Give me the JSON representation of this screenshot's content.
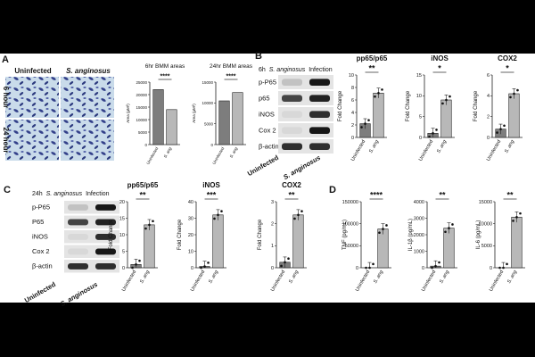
{
  "panel_labels": {
    "A": "A",
    "B": "B",
    "C": "C",
    "D": "D"
  },
  "micro": {
    "col1": "Uninfected",
    "col2": "S. anginosus",
    "row1": "6 hour",
    "row2": "24 hour"
  },
  "blots": {
    "B": {
      "header_prefix": "6h",
      "header_species": "S. anginosus",
      "header_suffix": "Infection",
      "bands": [
        "p-P65",
        "p65",
        "iNOS",
        "Cox 2",
        "β-actin"
      ],
      "lanes": [
        "Uninfected",
        "S. anginosus"
      ]
    },
    "C": {
      "header_prefix": "24h",
      "header_species": "S. anginosus",
      "header_suffix": "Infection",
      "bands": [
        "p-P65",
        "P65",
        "iNOS",
        "Cox 2",
        "β-actin"
      ],
      "lanes": [
        "Uninfected",
        "S. anginosus"
      ]
    }
  },
  "chart_data": [
    {
      "id": "a1",
      "type": "bar",
      "title": "6hr BMM areas",
      "ylabel": "Area (µM²)",
      "categories": [
        "Uninfected",
        "S. ang"
      ],
      "values": [
        22000,
        14000
      ],
      "ylim": [
        0,
        25000
      ],
      "yticks": [
        0,
        5000,
        10000,
        15000,
        20000,
        25000
      ],
      "significance": "****"
    },
    {
      "id": "a2",
      "type": "bar",
      "title": "24hr BMM areas",
      "ylabel": "Area (µM²)",
      "categories": [
        "Uninfected",
        "S. ang"
      ],
      "values": [
        10500,
        12500
      ],
      "ylim": [
        0,
        15000
      ],
      "yticks": [
        0,
        5000,
        10000,
        15000
      ],
      "significance": "****"
    },
    {
      "id": "b1",
      "type": "bar",
      "title": "pp65/p65",
      "ylabel": "Fold Change",
      "categories": [
        "Uninfected",
        "S. ang"
      ],
      "values": [
        2.2,
        7.1
      ],
      "ylim": [
        0,
        10
      ],
      "yticks": [
        0,
        2,
        4,
        6,
        8,
        10
      ],
      "significance": "**"
    },
    {
      "id": "b2",
      "type": "bar",
      "title": "iNOS",
      "ylabel": "Fold Change",
      "categories": [
        "Uninfected",
        "S. ang"
      ],
      "values": [
        1.0,
        9.0
      ],
      "ylim": [
        0,
        15
      ],
      "yticks": [
        0,
        5,
        10,
        15
      ],
      "significance": "*"
    },
    {
      "id": "b3",
      "type": "bar",
      "title": "COX2",
      "ylabel": "Fold Change",
      "categories": [
        "Uninfected",
        "S. ang"
      ],
      "values": [
        0.8,
        4.2
      ],
      "ylim": [
        0,
        6
      ],
      "yticks": [
        0,
        2,
        4,
        6
      ],
      "significance": "*"
    },
    {
      "id": "c1",
      "type": "bar",
      "title": "pp65/p65",
      "ylabel": "Fold Change",
      "categories": [
        "Uninfected",
        "S. ang"
      ],
      "values": [
        1.0,
        13.0
      ],
      "ylim": [
        0,
        20
      ],
      "yticks": [
        0,
        5,
        10,
        15,
        20
      ],
      "significance": "**"
    },
    {
      "id": "c2",
      "type": "bar",
      "title": "iNOS",
      "ylabel": "Fold Change",
      "categories": [
        "Uninfected",
        "S. ang"
      ],
      "values": [
        0.8,
        32.0
      ],
      "ylim": [
        0,
        40
      ],
      "yticks": [
        0,
        10,
        20,
        30,
        40
      ],
      "significance": "***"
    },
    {
      "id": "c3",
      "type": "bar",
      "title": "COX2",
      "ylabel": "Fold Change",
      "categories": [
        "Uninfected",
        "S. ang"
      ],
      "values": [
        0.25,
        2.4
      ],
      "ylim": [
        0,
        3
      ],
      "yticks": [
        0,
        1,
        2,
        3
      ],
      "significance": "**"
    },
    {
      "id": "d1",
      "type": "bar",
      "title": "",
      "ylabel": "TNF (pg/mL)",
      "categories": [
        "Uninfected",
        "S. ang"
      ],
      "values": [
        0,
        88000
      ],
      "ylim": [
        0,
        150000
      ],
      "yticks": [
        0,
        50000,
        100000,
        150000
      ],
      "significance": "****"
    },
    {
      "id": "d2",
      "type": "bar",
      "title": "",
      "ylabel": "IL-1β (pg/mL)",
      "categories": [
        "Uninfected",
        "S. ang"
      ],
      "values": [
        100,
        2400
      ],
      "ylim": [
        0,
        4000
      ],
      "yticks": [
        0,
        1000,
        2000,
        3000,
        4000
      ],
      "significance": "**"
    },
    {
      "id": "d3",
      "type": "bar",
      "title": "",
      "ylabel": "IL-6 (pg/mL)",
      "categories": [
        "Uninfected",
        "S. ang"
      ],
      "values": [
        0,
        11500
      ],
      "ylim": [
        0,
        15000
      ],
      "yticks": [
        0,
        5000,
        10000,
        15000
      ],
      "significance": "**"
    }
  ]
}
